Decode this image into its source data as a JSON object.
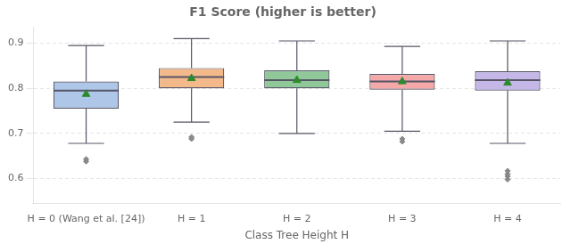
{
  "chart_data": {
    "type": "box",
    "title": "F1 Score (higher is better)",
    "xlabel": "Class Tree Height H",
    "categories": [
      "H = 0 (Wang et al. [24])",
      "H = 1",
      "H = 2",
      "H = 3",
      "H = 4"
    ],
    "boxes": {
      "q1": [
        0.755,
        0.8,
        0.8,
        0.797,
        0.795
      ],
      "median": [
        0.795,
        0.825,
        0.818,
        0.815,
        0.818
      ],
      "q3": [
        0.815,
        0.845,
        0.84,
        0.832,
        0.838
      ],
      "whisker_low": [
        0.678,
        0.725,
        0.7,
        0.705,
        0.678
      ],
      "whisker_high": [
        0.895,
        0.91,
        0.905,
        0.893,
        0.905
      ],
      "colors": [
        "#aec6e8",
        "#f4b98a",
        "#90c89a",
        "#f4a8a8",
        "#c5b8e8"
      ],
      "color": "#555566"
    },
    "means": {
      "values": [
        0.787,
        0.822,
        0.818,
        0.815,
        0.812
      ],
      "color": "#2d8a2d",
      "marker": "triangle"
    },
    "fliers": {
      "values": [
        [
          0.638,
          0.643
        ],
        [
          0.692,
          0.688
        ],
        [],
        [
          0.688,
          0.682
        ],
        [
          0.617,
          0.61,
          0.605,
          0.598
        ]
      ],
      "color": "#888888",
      "marker": "diamond"
    },
    "ylim": [
      0.545,
      0.935
    ],
    "yticks": [
      0.6,
      0.7,
      0.8,
      0.9
    ],
    "grid": true
  }
}
